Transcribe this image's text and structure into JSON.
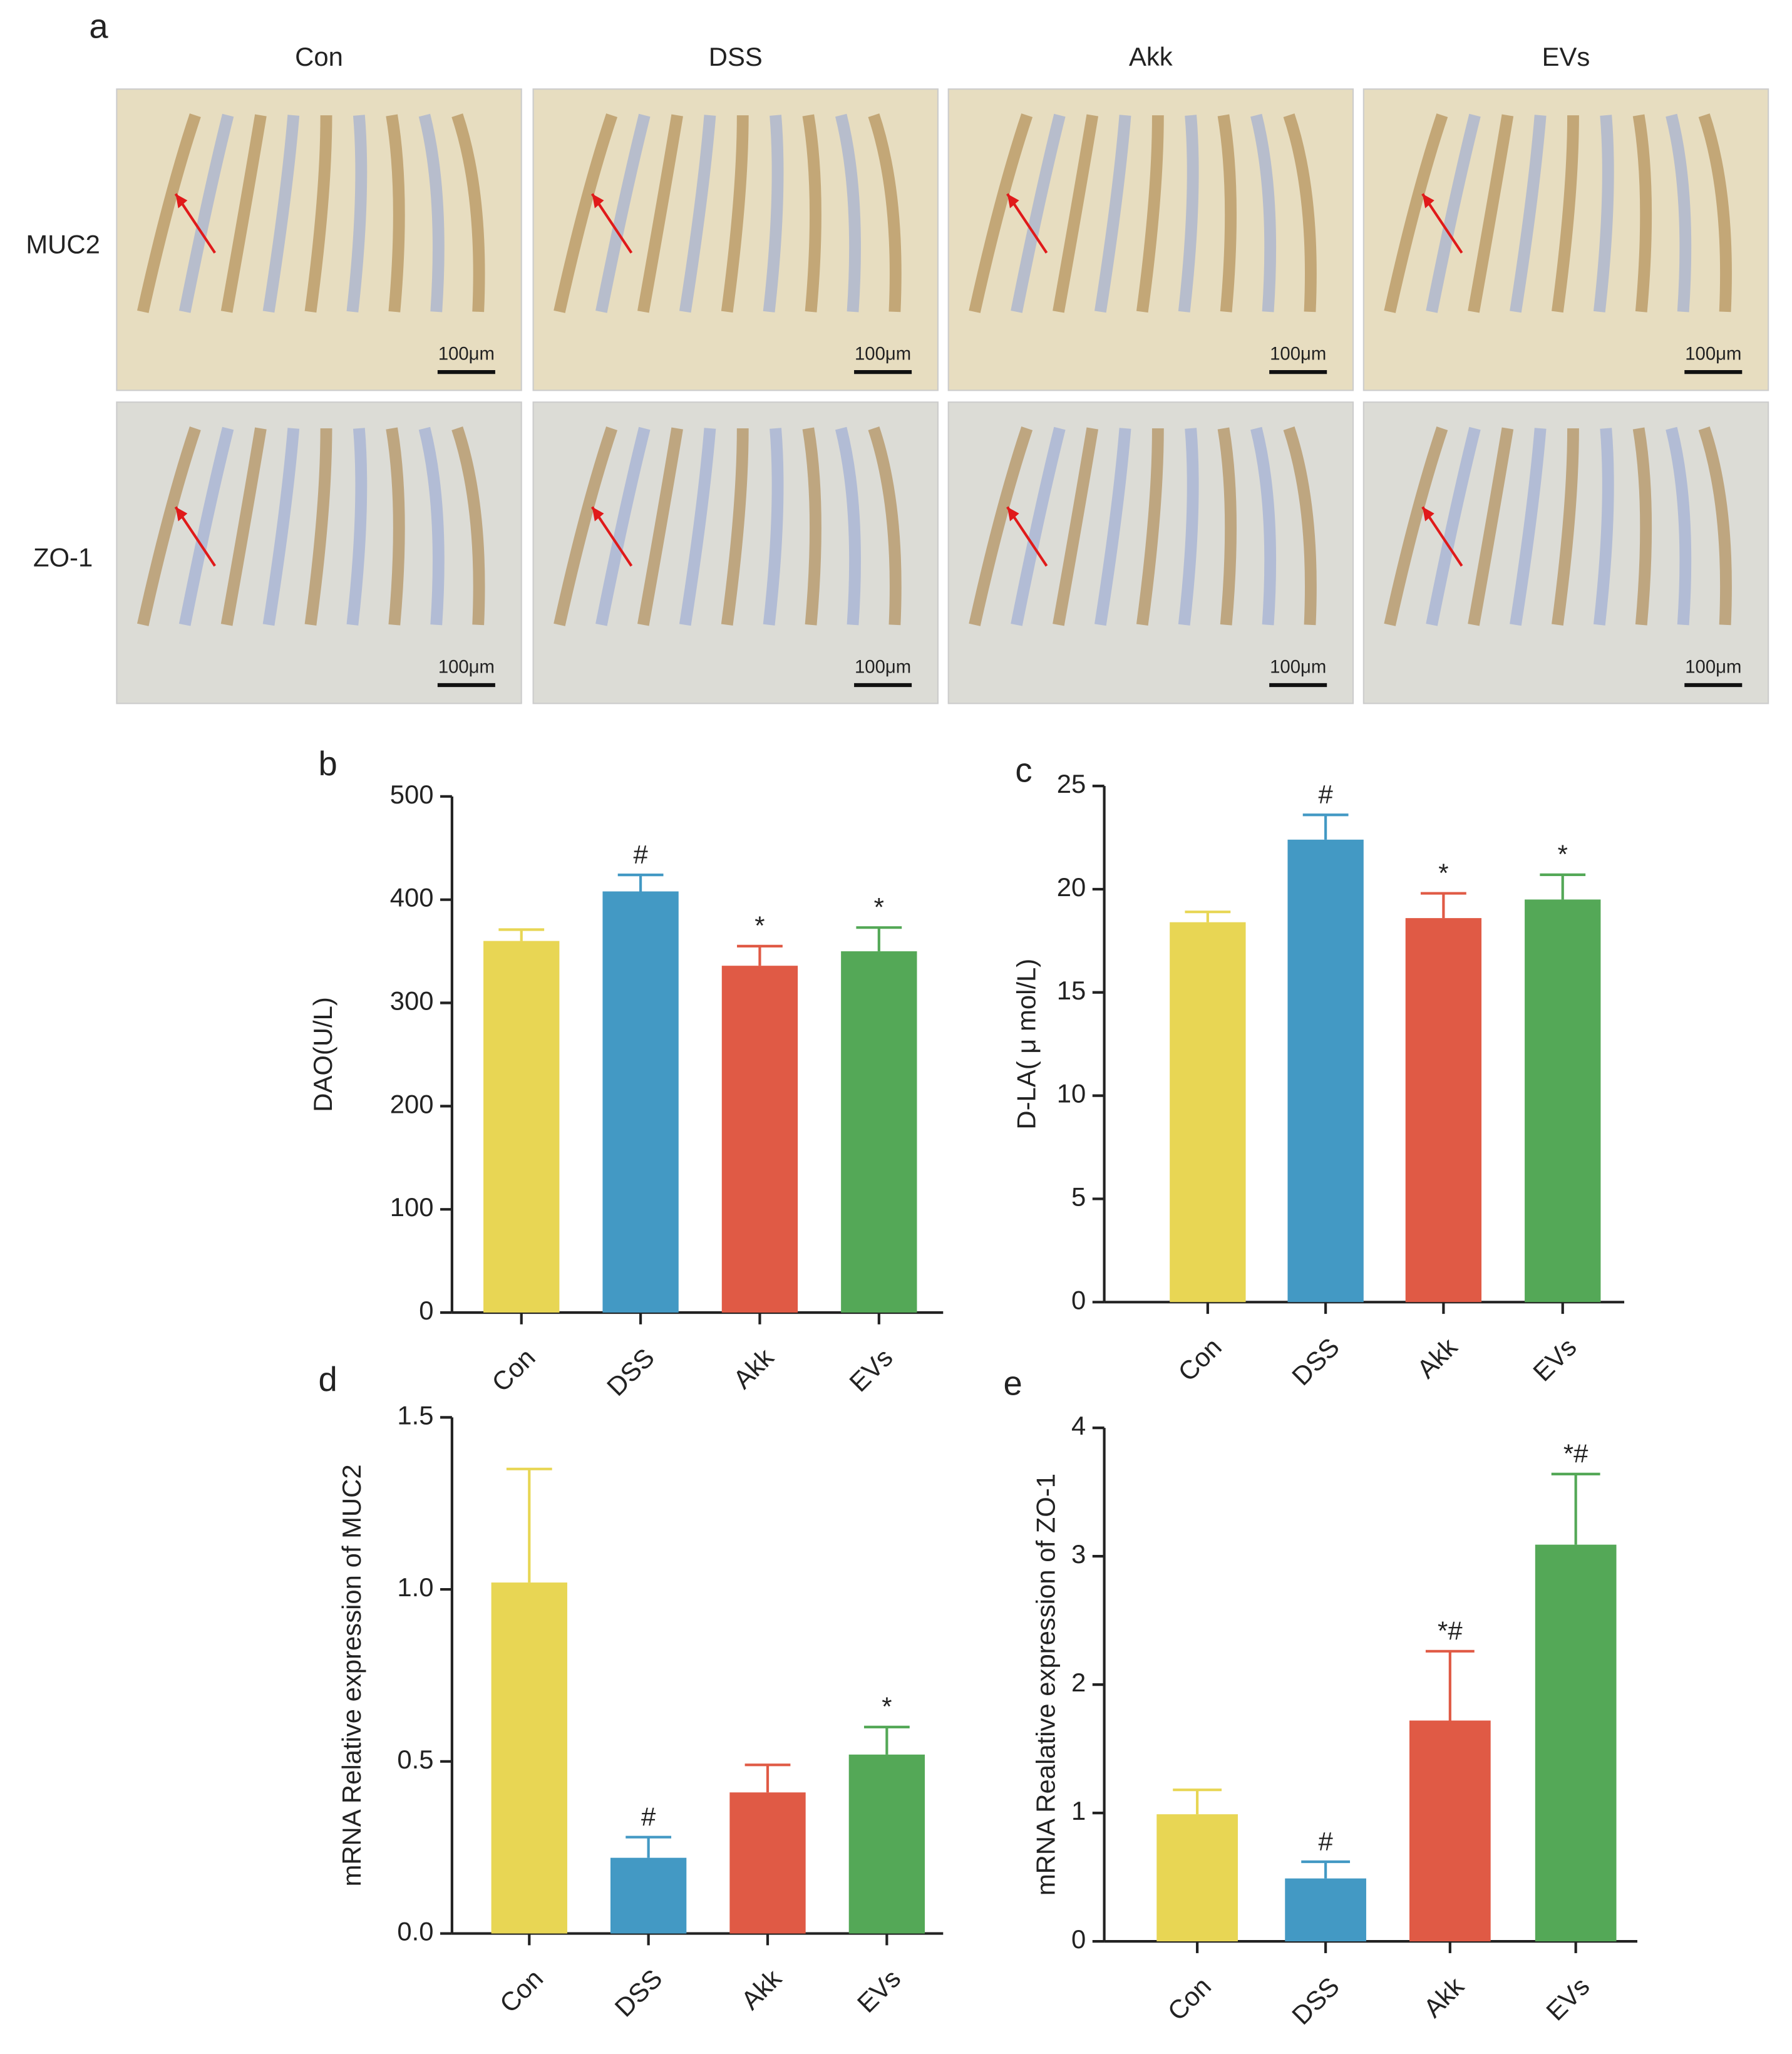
{
  "figure": {
    "panel_a": {
      "label": "a",
      "columns": [
        "Con",
        "DSS",
        "Akk",
        "EVs"
      ],
      "rows": [
        "MUC2",
        "ZO-1"
      ],
      "scale_bars": [
        "100μm",
        "100μm",
        "100μm",
        "100μm",
        "100μm",
        "100μm",
        "100μm",
        "100μm"
      ]
    }
  },
  "chart_data": [
    {
      "type": "bar",
      "panel": "b",
      "y_label": "DAO(U/L)",
      "categories": [
        "Con",
        "DSS",
        "Akk",
        "EVs"
      ],
      "values": [
        360,
        408,
        336,
        350
      ],
      "errors": [
        11,
        16,
        19,
        23
      ],
      "annotations": [
        null,
        "#",
        "*",
        "*"
      ],
      "colors": [
        "#e8d654",
        "#4399c4",
        "#e05a45",
        "#54a857"
      ],
      "ylim": [
        0,
        500
      ],
      "yticks": [
        0,
        100,
        200,
        300,
        400,
        500
      ]
    },
    {
      "type": "bar",
      "panel": "c",
      "y_label": "D-LA( μ mol/L)",
      "categories": [
        "Con",
        "DSS",
        "Akk",
        "EVs"
      ],
      "values": [
        18.4,
        22.4,
        18.6,
        19.5
      ],
      "errors": [
        0.5,
        1.2,
        1.2,
        1.2
      ],
      "annotations": [
        null,
        "#",
        "*",
        "*"
      ],
      "colors": [
        "#e8d654",
        "#4399c4",
        "#e05a45",
        "#54a857"
      ],
      "ylim": [
        0,
        25
      ],
      "yticks": [
        0,
        5,
        10,
        15,
        20,
        25
      ]
    },
    {
      "type": "bar",
      "panel": "d",
      "y_label": "mRNA Relative expression of MUC2",
      "categories": [
        "Con",
        "DSS",
        "Akk",
        "EVs"
      ],
      "values": [
        1.02,
        0.22,
        0.41,
        0.52
      ],
      "errors": [
        0.33,
        0.06,
        0.08,
        0.08
      ],
      "annotations": [
        null,
        "#",
        null,
        "*"
      ],
      "colors": [
        "#e8d654",
        "#4399c4",
        "#e05a45",
        "#54a857"
      ],
      "ylim": [
        0,
        1.5
      ],
      "yticks": [
        {
          "value": 0,
          "label": "0.0"
        },
        0.5,
        {
          "value": 1,
          "label": "1.0"
        },
        1.5
      ]
    },
    {
      "type": "bar",
      "panel": "e",
      "y_label": "mRNA Realative expression of ZO-1",
      "categories": [
        "Con",
        "DSS",
        "Akk",
        "EVs"
      ],
      "values": [
        0.99,
        0.49,
        1.72,
        3.09
      ],
      "errors": [
        0.19,
        0.13,
        0.54,
        0.55
      ],
      "annotations": [
        null,
        "#",
        "*#",
        "*#"
      ],
      "colors": [
        "#e8d654",
        "#4399c4",
        "#e05a45",
        "#54a857"
      ],
      "ylim": [
        0,
        4
      ],
      "yticks": [
        0,
        1,
        2,
        3,
        4
      ]
    }
  ]
}
